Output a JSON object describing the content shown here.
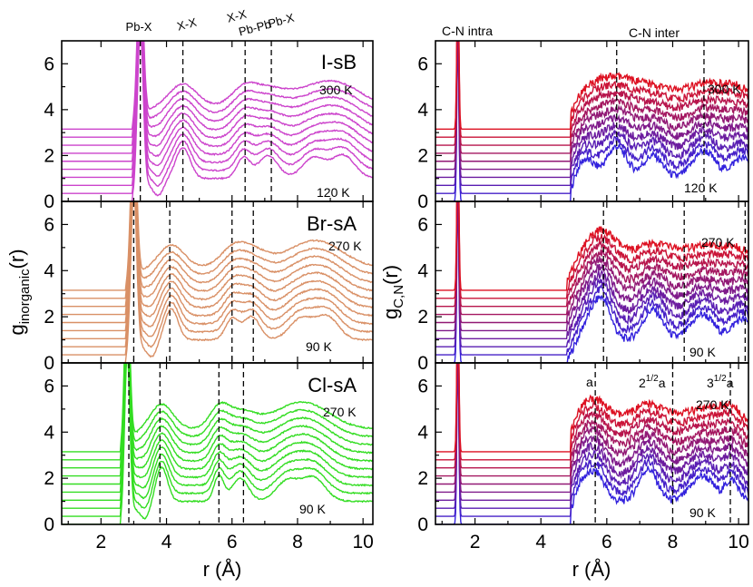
{
  "chart_data": {
    "type": "line",
    "xlabel": "r (Å)",
    "xlim": [
      0.8,
      10.3
    ],
    "x_ticks": [
      "2",
      "4",
      "6",
      "8",
      "10"
    ],
    "y_ticks": [
      "0",
      "2",
      "4",
      "6"
    ],
    "ylim": [
      0,
      7
    ],
    "left_ylabel": {
      "main": "g",
      "sub": "inorganic",
      "tail": "(r)"
    },
    "right_ylabel": {
      "main": "g",
      "sub": "C,N",
      "tail": "(r)"
    },
    "curves_per_panel": 10,
    "curve_offset": 0.35,
    "panels": [
      {
        "id": "I-sB",
        "column": "left",
        "row": 0,
        "label": "I-sB",
        "temp_high": "300 K",
        "temp_low": "120 K",
        "color_low": "#cc44cc",
        "color_high": "#cc44cc",
        "vlines": [
          3.2,
          4.5,
          6.4,
          7.2
        ],
        "peak_labels": [
          "Pb-X",
          "X-X",
          "X-X",
          "Pb-Pb",
          "Pb-X"
        ],
        "peaks": [
          {
            "x": 3.2,
            "h": 6.9,
            "w": 0.09
          },
          {
            "x": 4.5,
            "h": 1.35,
            "w": 0.22
          },
          {
            "x": 6.35,
            "h": 0.9,
            "w": 0.2
          },
          {
            "x": 7.1,
            "h": 1.0,
            "w": 0.3
          },
          {
            "x": 8.5,
            "h": 0.9,
            "w": 0.35
          },
          {
            "x": 9.4,
            "h": 1.0,
            "w": 0.35
          }
        ],
        "onset": 2.95
      },
      {
        "id": "Br-sA",
        "column": "left",
        "row": 1,
        "label": "Br-sA",
        "temp_high": "270 K",
        "temp_low": "90 K",
        "color_low": "#d99066",
        "color_high": "#d99066",
        "vlines": [
          3.0,
          4.1,
          6.0,
          6.65
        ],
        "peaks": [
          {
            "x": 3.0,
            "h": 6.9,
            "w": 0.09
          },
          {
            "x": 4.15,
            "h": 1.35,
            "w": 0.2
          },
          {
            "x": 6.0,
            "h": 0.9,
            "w": 0.2
          },
          {
            "x": 6.6,
            "h": 1.0,
            "w": 0.25
          },
          {
            "x": 8.1,
            "h": 0.9,
            "w": 0.35
          },
          {
            "x": 8.9,
            "h": 1.0,
            "w": 0.35
          }
        ],
        "onset": 2.75
      },
      {
        "id": "Cl-sA",
        "column": "left",
        "row": 2,
        "label": "Cl-sA",
        "temp_high": "270 K",
        "temp_low": "90 K",
        "color_low": "#33dd22",
        "color_high": "#33dd22",
        "vlines": [
          2.85,
          3.8,
          5.6,
          6.35
        ],
        "peaks": [
          {
            "x": 2.8,
            "h": 6.9,
            "w": 0.08
          },
          {
            "x": 3.85,
            "h": 1.5,
            "w": 0.18
          },
          {
            "x": 5.6,
            "h": 1.1,
            "w": 0.15
          },
          {
            "x": 6.25,
            "h": 1.0,
            "w": 0.25
          },
          {
            "x": 7.7,
            "h": 0.9,
            "w": 0.35
          },
          {
            "x": 8.5,
            "h": 1.0,
            "w": 0.35
          }
        ],
        "onset": 2.6
      },
      {
        "id": "r-I-sB",
        "column": "right",
        "row": 0,
        "label": "",
        "temp_high": "300 K",
        "temp_low": "120 K",
        "color_low": "#3322dd",
        "color_high": "#dd1122",
        "vlines": [
          6.3,
          8.95
        ],
        "top_labels": [
          "C-N intra",
          "C-N inter"
        ],
        "peaks": [
          {
            "x": 1.48,
            "h": 7.2,
            "w": 0.03
          },
          {
            "x": 5.3,
            "h": 1.1,
            "w": 0.3
          },
          {
            "x": 6.3,
            "h": 1.4,
            "w": 0.3
          },
          {
            "x": 7.4,
            "h": 1.0,
            "w": 0.3
          },
          {
            "x": 8.95,
            "h": 1.2,
            "w": 0.35
          },
          {
            "x": 10.1,
            "h": 0.9,
            "w": 0.3
          }
        ],
        "onset": 4.9
      },
      {
        "id": "r-Br-sA",
        "column": "right",
        "row": 1,
        "label": "",
        "temp_high": "270 K",
        "temp_low": "90 K",
        "color_low": "#3322dd",
        "color_high": "#dd1122",
        "vlines": [
          5.9,
          8.35,
          10.2
        ],
        "peaks": [
          {
            "x": 1.48,
            "h": 7.2,
            "w": 0.03
          },
          {
            "x": 5.5,
            "h": 1.0,
            "w": 0.3
          },
          {
            "x": 5.9,
            "h": 1.4,
            "w": 0.25
          },
          {
            "x": 7.4,
            "h": 1.3,
            "w": 0.3
          },
          {
            "x": 8.9,
            "h": 1.1,
            "w": 0.35
          },
          {
            "x": 10.1,
            "h": 0.9,
            "w": 0.3
          }
        ],
        "onset": 4.8
      },
      {
        "id": "r-Cl-sA",
        "column": "right",
        "row": 2,
        "label": "",
        "temp_high": "270 K",
        "temp_low": "90 K",
        "color_low": "#3322dd",
        "color_high": "#dd1122",
        "vlines": [
          5.65,
          8.0,
          9.75
        ],
        "lattice_labels": [
          {
            "base": "a",
            "sup": ""
          },
          {
            "base": "2",
            "sup": "1/2",
            "tail": "a"
          },
          {
            "base": "3",
            "sup": "1/2",
            "tail": "a"
          }
        ],
        "peaks": [
          {
            "x": 1.48,
            "h": 7.2,
            "w": 0.03
          },
          {
            "x": 5.2,
            "h": 1.1,
            "w": 0.25
          },
          {
            "x": 5.7,
            "h": 1.2,
            "w": 0.25
          },
          {
            "x": 7.25,
            "h": 1.4,
            "w": 0.28
          },
          {
            "x": 8.9,
            "h": 1.1,
            "w": 0.35
          },
          {
            "x": 9.8,
            "h": 0.9,
            "w": 0.2
          }
        ],
        "onset": 4.9
      }
    ]
  }
}
